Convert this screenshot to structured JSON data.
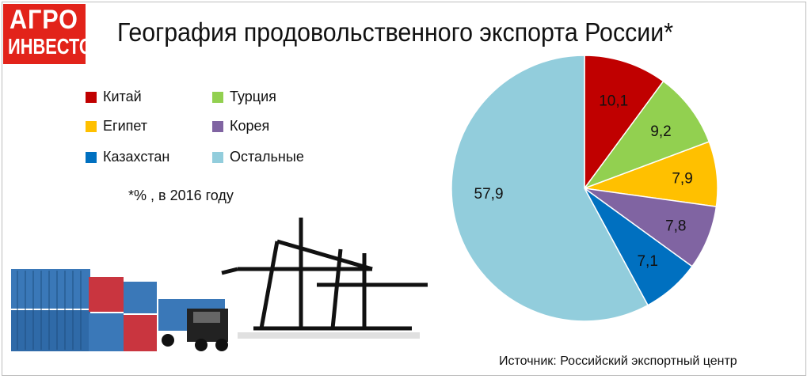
{
  "logo": {
    "line1": "АГРО",
    "line2": "ИНВЕСТОР"
  },
  "title": "География продовольственного экспорта России*",
  "note": "*% , в 2016 году",
  "source": "Источник: Российский экспортный центр",
  "chart_data": {
    "type": "pie",
    "title": "География продовольственного экспорта России*",
    "unit": "%",
    "legend_placement": "top-left",
    "slices": [
      {
        "label": "Китай",
        "value": 10.1,
        "display": "10,1",
        "color": "#c00000"
      },
      {
        "label": "Турция",
        "value": 9.2,
        "display": "9,2",
        "color": "#92d050"
      },
      {
        "label": "Египет",
        "value": 7.9,
        "display": "7,9",
        "color": "#ffc000"
      },
      {
        "label": "Корея",
        "value": 7.8,
        "display": "7,8",
        "color": "#8064a2"
      },
      {
        "label": "Казахстан",
        "value": 7.1,
        "display": "7,1",
        "color": "#0070c0"
      },
      {
        "label": "Остальные",
        "value": 57.9,
        "display": "57,9",
        "color": "#92cddc"
      }
    ]
  }
}
